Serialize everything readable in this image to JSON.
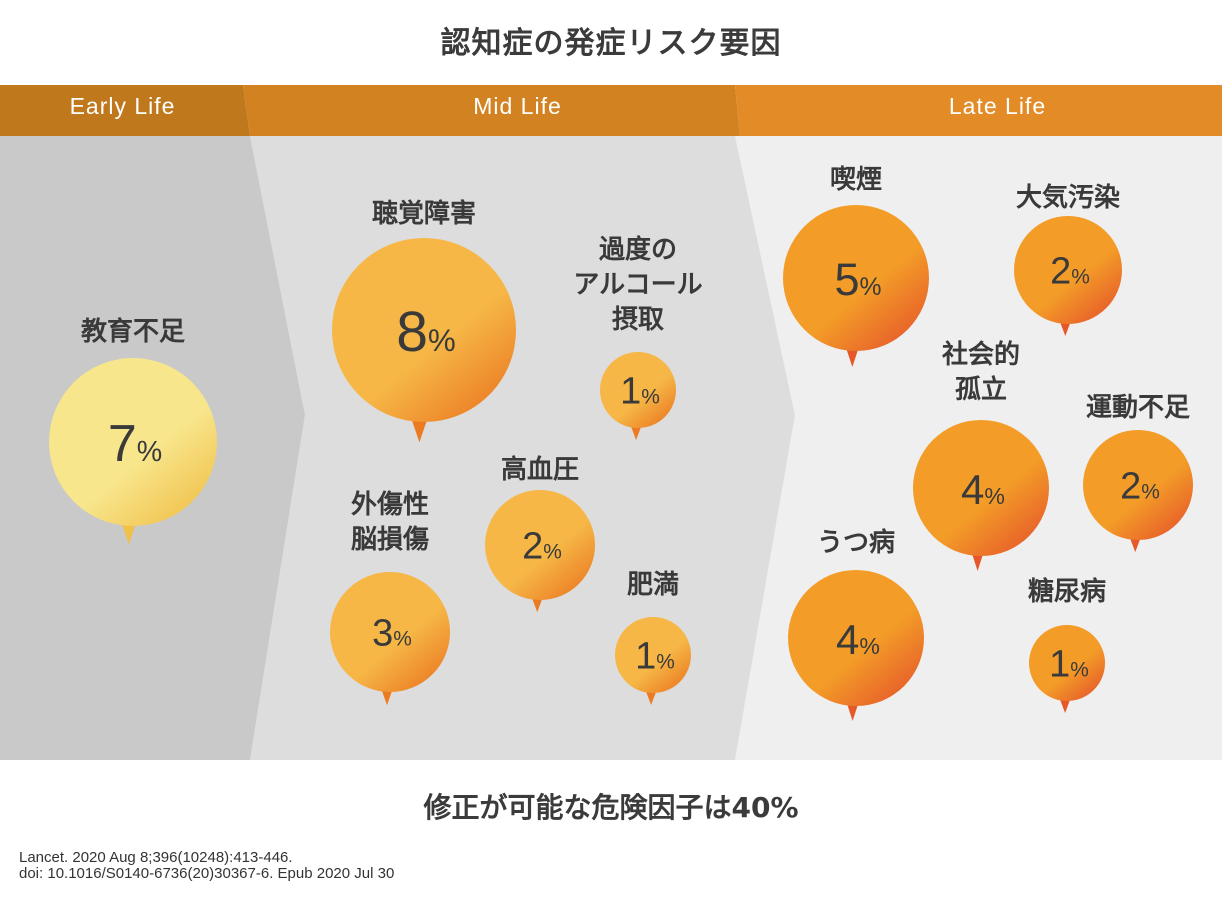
{
  "title": "認知症の発症リスク要因",
  "colors": {
    "header_early": "#c0781c",
    "header_mid": "#d38222",
    "header_late": "#e38b26",
    "panel_early": "#c8c9c8",
    "panel_mid": "#dcdddc",
    "panel_late": "#efefef",
    "bubble_early": [
      "#f8e68c",
      "#f0c04a"
    ],
    "bubble_mid": [
      "#f6b746",
      "#eb7a22"
    ],
    "bubble_late": [
      "#f39c28",
      "#e6582a"
    ]
  },
  "stages": [
    {
      "label": "Early Life"
    },
    {
      "label": "Mid Life"
    },
    {
      "label": "Late Life"
    }
  ],
  "factors": [
    {
      "stage": "early",
      "label": [
        "教育不足"
      ],
      "value": "7",
      "unit": "%"
    },
    {
      "stage": "mid",
      "label": [
        "聴覚障害"
      ],
      "value": "8",
      "unit": "%"
    },
    {
      "stage": "mid",
      "label": [
        "過度の",
        "アルコール",
        "摂取"
      ],
      "value": "1",
      "unit": "%"
    },
    {
      "stage": "mid",
      "label": [
        "外傷性",
        "脳損傷"
      ],
      "value": "3",
      "unit": "%"
    },
    {
      "stage": "mid",
      "label": [
        "高血圧"
      ],
      "value": "2",
      "unit": "%"
    },
    {
      "stage": "mid",
      "label": [
        "肥満"
      ],
      "value": "1",
      "unit": "%"
    },
    {
      "stage": "late",
      "label": [
        "喫煙"
      ],
      "value": "5",
      "unit": "%"
    },
    {
      "stage": "late",
      "label": [
        "大気汚染"
      ],
      "value": "2",
      "unit": "%"
    },
    {
      "stage": "late",
      "label": [
        "社会的",
        "孤立"
      ],
      "value": "4",
      "unit": "%"
    },
    {
      "stage": "late",
      "label": [
        "運動不足"
      ],
      "value": "2",
      "unit": "%"
    },
    {
      "stage": "late",
      "label": [
        "うつ病"
      ],
      "value": "4",
      "unit": "%"
    },
    {
      "stage": "late",
      "label": [
        "糖尿病"
      ],
      "value": "1",
      "unit": "%"
    }
  ],
  "summary": "修正が可能な危険因子は40%",
  "citation": {
    "line1": "Lancet. 2020 Aug 8;396(10248):413-446.",
    "line2": "doi: 10.1016/S0140-6736(20)30367-6. Epub 2020 Jul 30"
  }
}
